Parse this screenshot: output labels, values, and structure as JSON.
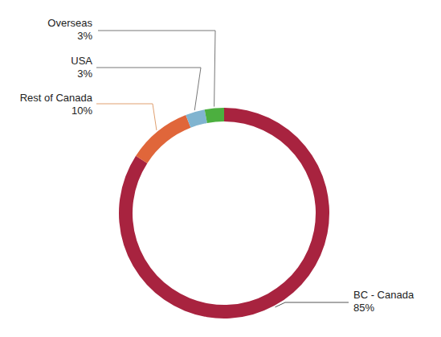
{
  "chart_data": {
    "type": "pie",
    "categories": [
      "BC - Canada",
      "Rest of Canada",
      "USA",
      "Overseas"
    ],
    "values": [
      85,
      10,
      3,
      3
    ],
    "value_labels": [
      "85%",
      "10%",
      "3%",
      "3%"
    ],
    "colors": [
      "#a8233f",
      "#e0663a",
      "#80b4d0",
      "#4caf3f"
    ],
    "data_labels": true
  }
}
